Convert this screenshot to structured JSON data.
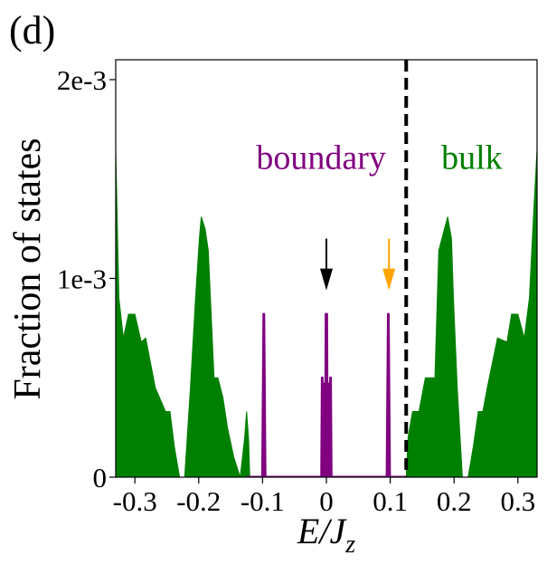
{
  "chart_data": {
    "type": "area",
    "panel_label": "(d)",
    "xlabel": "E/J",
    "xlabel_sub": "z",
    "ylabel": "Fraction of states",
    "xlim": [
      -0.33,
      0.33
    ],
    "ylim": [
      0,
      0.0021
    ],
    "xticks": [
      {
        "value": -0.3,
        "label": "-0.3"
      },
      {
        "value": -0.2,
        "label": "-0.2"
      },
      {
        "value": -0.1,
        "label": "-0.1"
      },
      {
        "value": 0.0,
        "label": "0"
      },
      {
        "value": 0.1,
        "label": "0.1"
      },
      {
        "value": 0.2,
        "label": "0.2"
      },
      {
        "value": 0.3,
        "label": "0.3"
      }
    ],
    "yticks": [
      {
        "value": 0,
        "label": "0"
      },
      {
        "value": 0.001,
        "label": "1e-3"
      },
      {
        "value": 0.002,
        "label": "2e-3"
      }
    ],
    "colors": {
      "bulk": "#008000",
      "boundary": "#800080",
      "divider": "#000000",
      "arrow_zero": "#000000",
      "arrow_edge": "#ffa500"
    },
    "divider_x": 0.125,
    "annotations": [
      {
        "text": "boundary",
        "color": "#800080",
        "x": -0.11,
        "y": 0.00155,
        "anchor": "start"
      },
      {
        "text": "bulk",
        "color": "#008000",
        "x": 0.18,
        "y": 0.00155,
        "anchor": "start"
      }
    ],
    "arrows": [
      {
        "name": "zero-mode-arrow",
        "x": 0.0,
        "y_from": 0.0012,
        "y_to": 0.00094,
        "color": "#000000"
      },
      {
        "name": "edge-mode-arrow",
        "x": 0.098,
        "y_from": 0.0012,
        "y_to": 0.00094,
        "color": "#ffa500"
      }
    ],
    "series": [
      {
        "name": "bulk-left",
        "kind": "area",
        "color": "#008000",
        "x": [
          -0.33,
          -0.325,
          -0.318,
          -0.31,
          -0.3,
          -0.29,
          -0.283,
          -0.268,
          -0.252,
          -0.245,
          -0.238,
          -0.23,
          -0.222,
          -0.213,
          -0.205,
          -0.199,
          -0.196,
          -0.19,
          -0.185,
          -0.176,
          -0.17,
          -0.162,
          -0.155,
          -0.145,
          -0.135,
          -0.128,
          -0.125,
          -0.122,
          -0.12
        ],
        "y": [
          0.00165,
          0.0009,
          0.0007,
          0.00082,
          0.00082,
          0.00068,
          0.0007,
          0.00045,
          0.00033,
          0.00033,
          0.00015,
          0.0,
          0.0,
          0.00045,
          0.0009,
          0.0012,
          0.00131,
          0.00125,
          0.00114,
          0.0005,
          0.0005,
          0.0004,
          0.00025,
          0.0001,
          0.0,
          0.0002,
          0.00033,
          0.0002,
          0.0
        ]
      },
      {
        "name": "bulk-right",
        "kind": "area",
        "color": "#008000",
        "x": [
          0.125,
          0.128,
          0.135,
          0.145,
          0.155,
          0.162,
          0.17,
          0.176,
          0.185,
          0.19,
          0.196,
          0.199,
          0.205,
          0.213,
          0.222,
          0.23,
          0.238,
          0.245,
          0.252,
          0.268,
          0.283,
          0.29,
          0.3,
          0.31,
          0.318,
          0.325,
          0.33
        ],
        "y": [
          0.0,
          0.0002,
          0.00033,
          0.00033,
          0.0005,
          0.0005,
          0.0005,
          0.00114,
          0.00125,
          0.00131,
          0.0012,
          0.0009,
          0.00045,
          0.0,
          0.0,
          0.00015,
          0.00033,
          0.00033,
          0.00045,
          0.0007,
          0.00068,
          0.00082,
          0.00082,
          0.0007,
          0.0009,
          0.00135,
          0.00165
        ]
      },
      {
        "name": "boundary",
        "kind": "line",
        "color": "#800080",
        "x": [
          -0.125,
          -0.1,
          -0.098,
          -0.096,
          -0.0075,
          -0.0065,
          -0.0055,
          -0.0045,
          -0.0035,
          -0.0025,
          -0.0015,
          -0.0005,
          0.0005,
          0.0015,
          0.0025,
          0.0035,
          0.0045,
          0.0055,
          0.0065,
          0.0075,
          0.095,
          0.097,
          0.099,
          0.125
        ],
        "y": [
          0.0,
          0.0,
          0.00082,
          0.0,
          0.0,
          0.0005,
          0.0,
          0.00047,
          0.0,
          0.0,
          0.0,
          0.00082,
          0.00082,
          0.0,
          0.0,
          0.0,
          0.00047,
          0.0,
          0.0005,
          0.0,
          0.0,
          0.00082,
          0.0,
          0.0
        ]
      }
    ]
  }
}
